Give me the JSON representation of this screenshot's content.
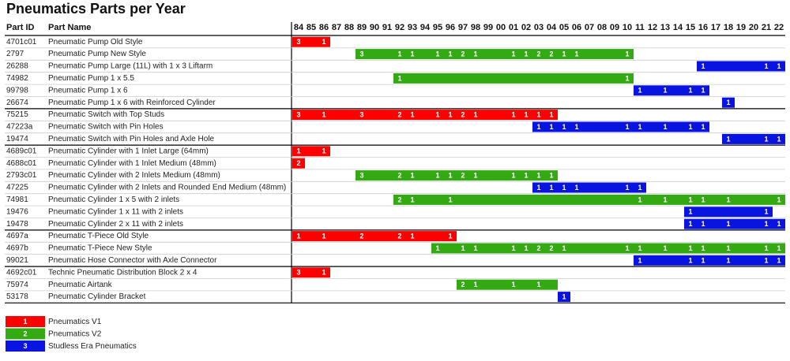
{
  "title": "Pneumatics Parts per Year",
  "columns": {
    "id": "Part ID",
    "name": "Part Name"
  },
  "years": [
    "84",
    "85",
    "86",
    "87",
    "88",
    "89",
    "90",
    "91",
    "92",
    "93",
    "94",
    "95",
    "96",
    "97",
    "98",
    "99",
    "00",
    "01",
    "02",
    "03",
    "04",
    "05",
    "06",
    "07",
    "08",
    "09",
    "10",
    "11",
    "12",
    "13",
    "14",
    "15",
    "16",
    "17",
    "18",
    "19",
    "20",
    "21",
    "22"
  ],
  "legend": [
    {
      "key": "1",
      "label": "Pneumatics V1",
      "color": "#ff0000"
    },
    {
      "key": "2",
      "label": "Pneumatics V2",
      "color": "#33aa11"
    },
    {
      "key": "3",
      "label": "Studless Era Pneumatics",
      "color": "#0a14e0"
    }
  ],
  "groups": [
    [
      {
        "id": "4701c01",
        "name": "Pneumatic Pump Old Style",
        "era": "1",
        "from": "84",
        "to": "86",
        "counts": {
          "84": 3,
          "86": 1
        }
      },
      {
        "id": "2797",
        "name": "Pneumatic Pump New Style",
        "era": "2",
        "from": "89",
        "to": "10",
        "counts": {
          "89": 3,
          "92": 1,
          "93": 1,
          "95": 1,
          "96": 1,
          "97": 2,
          "98": 1,
          "01": 1,
          "02": 1,
          "03": 2,
          "04": 2,
          "05": 1,
          "06": 1,
          "10": 1
        }
      },
      {
        "id": "26288",
        "name": "Pneumatic Pump Large (11L) with 1 x 3 Liftarm",
        "era": "3",
        "from": "16",
        "to": "22",
        "counts": {
          "16": 1,
          "21": 1,
          "22": 1
        }
      },
      {
        "id": "74982",
        "name": "Pneumatic Pump 1 x 5.5",
        "era": "2",
        "from": "92",
        "to": "10",
        "counts": {
          "92": 1,
          "10": 1
        }
      },
      {
        "id": "99798",
        "name": "Pneumatic Pump 1 x 6",
        "era": "3",
        "from": "11",
        "to": "16",
        "counts": {
          "11": 1,
          "13": 1,
          "15": 1,
          "16": 1
        }
      },
      {
        "id": "26674",
        "name": "Pneumatic Pump 1 x 6 with Reinforced Cylinder",
        "era": "3",
        "from": "18",
        "to": "18",
        "counts": {
          "18": 1
        }
      }
    ],
    [
      {
        "id": "75215",
        "name": "Pneumatic Switch with Top Studs",
        "era": "1",
        "from": "84",
        "to": "04",
        "counts": {
          "84": 3,
          "86": 1,
          "89": 3,
          "92": 2,
          "93": 1,
          "95": 1,
          "96": 1,
          "97": 2,
          "98": 1,
          "01": 1,
          "02": 1,
          "03": 1,
          "04": 1
        }
      },
      {
        "id": "47223a",
        "name": "Pneumatic Switch with Pin Holes",
        "era": "3",
        "from": "03",
        "to": "16",
        "counts": {
          "03": 1,
          "04": 1,
          "05": 1,
          "06": 1,
          "10": 1,
          "11": 1,
          "13": 1,
          "15": 1,
          "16": 1
        }
      },
      {
        "id": "19474",
        "name": "Pneumatic Switch with Pin Holes and Axle Hole",
        "era": "3",
        "from": "18",
        "to": "22",
        "counts": {
          "18": 1,
          "21": 1,
          "22": 1
        }
      }
    ],
    [
      {
        "id": "4689c01",
        "name": "Pneumatic Cylinder with 1 Inlet Large (64mm)",
        "era": "1",
        "from": "84",
        "to": "86",
        "counts": {
          "84": 1,
          "86": 1
        }
      },
      {
        "id": "4688c01",
        "name": "Pneumatic Cylinder with 1 Inlet Medium (48mm)",
        "era": "1",
        "from": "84",
        "to": "84",
        "counts": {
          "84": 2
        }
      },
      {
        "id": "2793c01",
        "name": "Pneumatic Cylinder with 2 Inlets Medium (48mm)",
        "era": "2",
        "from": "89",
        "to": "04",
        "counts": {
          "89": 3,
          "92": 2,
          "93": 1,
          "95": 1,
          "96": 1,
          "97": 2,
          "98": 1,
          "01": 1,
          "02": 1,
          "03": 1,
          "04": 1
        }
      },
      {
        "id": "47225",
        "name": "Pneumatic Cylinder with 2 Inlets and Rounded End Medium (48mm)",
        "era": "3",
        "from": "03",
        "to": "11",
        "counts": {
          "03": 1,
          "04": 1,
          "05": 1,
          "06": 1,
          "10": 1,
          "11": 1
        }
      },
      {
        "id": "74981",
        "name": "Pneumatic Cylinder 1 x 5 with 2 inlets",
        "era": "2",
        "from": "92",
        "to": "22",
        "counts": {
          "92": 2,
          "93": 1,
          "96": 1,
          "11": 1,
          "13": 1,
          "15": 1,
          "16": 1,
          "18": 1,
          "22": 1
        }
      },
      {
        "id": "19476",
        "name": "Pneumatic Cylinder 1 x 11 with 2 inlets",
        "era": "3",
        "from": "15",
        "to": "21",
        "counts": {
          "15": 1,
          "21": 1
        }
      },
      {
        "id": "19478",
        "name": "Pneumatic Cylinder 2 x 11 with 2 inlets",
        "era": "3",
        "from": "15",
        "to": "22",
        "counts": {
          "15": 1,
          "16": 1,
          "18": 1,
          "21": 1,
          "22": 1
        }
      }
    ],
    [
      {
        "id": "4697a",
        "name": "Pneumatic T-Piece Old Style",
        "era": "1",
        "from": "84",
        "to": "96",
        "counts": {
          "84": 1,
          "86": 1,
          "89": 2,
          "92": 2,
          "93": 1,
          "96": 1
        }
      },
      {
        "id": "4697b",
        "name": "Pneumatic T-Piece New Style",
        "era": "2",
        "from": "95",
        "to": "22",
        "counts": {
          "95": 1,
          "97": 1,
          "98": 1,
          "01": 1,
          "02": 1,
          "03": 2,
          "04": 2,
          "05": 1,
          "10": 1,
          "11": 1,
          "13": 1,
          "15": 1,
          "16": 1,
          "18": 1,
          "21": 1,
          "22": 1
        }
      },
      {
        "id": "99021",
        "name": "Pneumatic Hose Connector with Axle Connector",
        "era": "3",
        "from": "11",
        "to": "22",
        "counts": {
          "11": 1,
          "15": 1,
          "16": 1,
          "18": 1,
          "21": 1,
          "22": 1
        }
      }
    ],
    [
      {
        "id": "4692c01",
        "name": "Technic Pneumatic Distribution Block  2 x  4",
        "era": "1",
        "from": "84",
        "to": "86",
        "counts": {
          "84": 3,
          "86": 1
        }
      },
      {
        "id": "75974",
        "name": "Pneumatic Airtank",
        "era": "2",
        "from": "97",
        "to": "04",
        "counts": {
          "97": 2,
          "98": 1,
          "01": 1,
          "03": 1
        }
      },
      {
        "id": "53178",
        "name": "Pneumatic Cylinder Bracket",
        "era": "3",
        "from": "05",
        "to": "05",
        "counts": {
          "05": 1
        }
      }
    ]
  ]
}
